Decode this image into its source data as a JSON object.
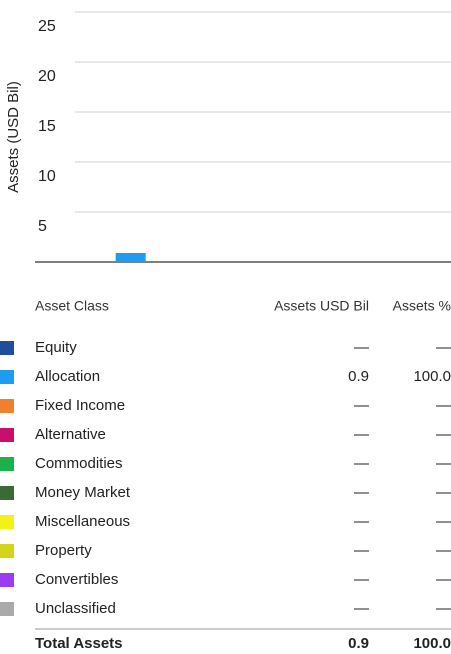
{
  "chart_data": {
    "type": "bar",
    "y_label": "Assets (USD Bil)",
    "categories": [
      null,
      null,
      null
    ],
    "values": [
      0.9,
      null,
      null
    ],
    "color": "#1e9cf0",
    "ylim": [
      0,
      25
    ],
    "yticks": [
      5,
      10,
      15,
      20,
      25
    ],
    "grid": true
  },
  "table": {
    "columns": [
      "Asset Class",
      "Assets USD Bil",
      "Assets %"
    ],
    "rows": [
      {
        "name": "Equity",
        "color": "#1f4e9c",
        "usd": "—",
        "pct": "—"
      },
      {
        "name": "Allocation",
        "color": "#1e9cf0",
        "usd": "0.9",
        "pct": "100.0"
      },
      {
        "name": "Fixed Income",
        "color": "#f07f2e",
        "usd": "—",
        "pct": "—"
      },
      {
        "name": "Alternative",
        "color": "#c8106a",
        "usd": "—",
        "pct": "—"
      },
      {
        "name": "Commodities",
        "color": "#1bb24b",
        "usd": "—",
        "pct": "—"
      },
      {
        "name": "Money Market",
        "color": "#3a6b35",
        "usd": "—",
        "pct": "—"
      },
      {
        "name": "Miscellaneous",
        "color": "#f2f218",
        "usd": "—",
        "pct": "—"
      },
      {
        "name": "Property",
        "color": "#d4d418",
        "usd": "—",
        "pct": "—"
      },
      {
        "name": "Convertibles",
        "color": "#9b3cf0",
        "usd": "—",
        "pct": "—"
      },
      {
        "name": "Unclassified",
        "color": "#aaaaaa",
        "usd": "—",
        "pct": "—"
      }
    ],
    "total": {
      "name": "Total Assets",
      "usd": "0.9",
      "pct": "100.0"
    }
  }
}
